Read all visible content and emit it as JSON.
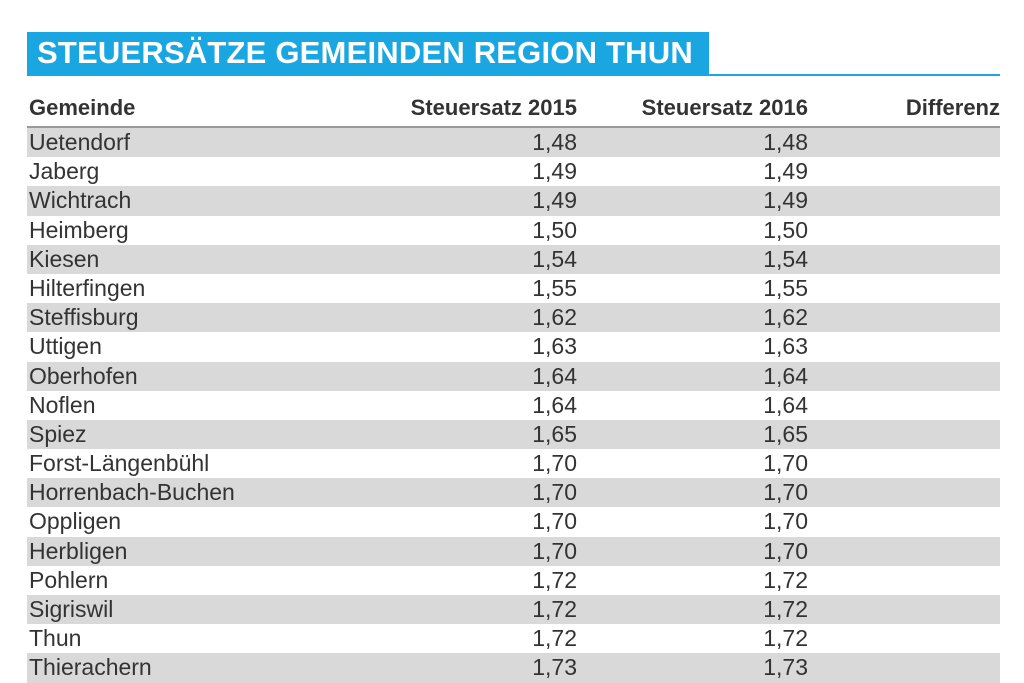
{
  "title": "STEUERSÄTZE GEMEINDEN REGION THUN",
  "columns": [
    "Gemeinde",
    "Steuersatz 2015",
    "Steuersatz 2016",
    "Differenz"
  ],
  "colors": {
    "accent": "#1aa7e1",
    "row_shade": "#d9d9d9",
    "text": "#333333"
  },
  "chart_data": {
    "type": "table",
    "title": "STEUERSÄTZE GEMEINDEN REGION THUN",
    "columns": [
      "Gemeinde",
      "Steuersatz 2015",
      "Steuersatz 2016",
      "Differenz"
    ],
    "rows": [
      [
        "Uetendorf",
        "1,48",
        "1,48",
        ""
      ],
      [
        "Jaberg",
        "1,49",
        "1,49",
        ""
      ],
      [
        "Wichtrach",
        "1,49",
        "1,49",
        ""
      ],
      [
        "Heimberg",
        "1,50",
        "1,50",
        ""
      ],
      [
        "Kiesen",
        "1,54",
        "1,54",
        ""
      ],
      [
        "Hilterfingen",
        "1,55",
        "1,55",
        ""
      ],
      [
        "Steffisburg",
        "1,62",
        "1,62",
        ""
      ],
      [
        "Uttigen",
        "1,63",
        "1,63",
        ""
      ],
      [
        "Oberhofen",
        "1,64",
        "1,64",
        ""
      ],
      [
        "Noflen",
        "1,64",
        "1,64",
        ""
      ],
      [
        "Spiez",
        "1,65",
        "1,65",
        ""
      ],
      [
        "Forst-Längenbühl",
        "1,70",
        "1,70",
        ""
      ],
      [
        "Horrenbach-Buchen",
        "1,70",
        "1,70",
        ""
      ],
      [
        "Oppligen",
        "1,70",
        "1,70",
        ""
      ],
      [
        "Herbligen",
        "1,70",
        "1,70",
        ""
      ],
      [
        "Pohlern",
        "1,72",
        "1,72",
        ""
      ],
      [
        "Sigriswil",
        "1,72",
        "1,72",
        ""
      ],
      [
        "Thun",
        "1,72",
        "1,72",
        ""
      ],
      [
        "Thierachern",
        "1,73",
        "1,73",
        ""
      ]
    ]
  }
}
